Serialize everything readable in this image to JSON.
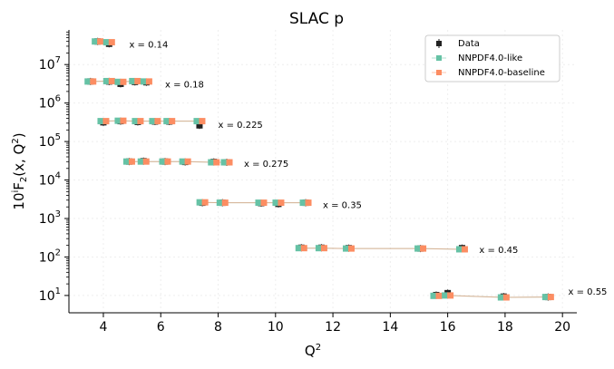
{
  "chart_data": {
    "type": "scatter",
    "title": "SLAC p",
    "xlabel": "Q",
    "xlabel_sup": "2",
    "ylabel_parts": {
      "base": "10",
      "exp": "i",
      "func": "F",
      "sub": "2",
      "args": "(x, Q",
      "args_sup": "2",
      "close": ")"
    },
    "xlim": [
      2.8,
      20.5
    ],
    "ylim_log10": [
      0.55,
      7.9
    ],
    "y_scale": "log",
    "xticks": [
      4,
      6,
      8,
      10,
      12,
      14,
      16,
      18,
      20
    ],
    "xtick_labels": [
      "4",
      "6",
      "8",
      "10",
      "12",
      "14",
      "16",
      "18",
      "20"
    ],
    "ytick_exponents": [
      1,
      2,
      3,
      4,
      5,
      6,
      7
    ],
    "ytick_labels": [
      {
        "base": "10",
        "exp": "1"
      },
      {
        "base": "10",
        "exp": "2"
      },
      {
        "base": "10",
        "exp": "3"
      },
      {
        "base": "10",
        "exp": "4"
      },
      {
        "base": "10",
        "exp": "5"
      },
      {
        "base": "10",
        "exp": "6"
      },
      {
        "base": "10",
        "exp": "7"
      }
    ],
    "grid": true,
    "legend_position": "top-right",
    "series": [
      {
        "name": "Data",
        "color": "#222222",
        "marker": "square"
      },
      {
        "name": "NNPDF4.0-like",
        "color": "#66c2a5",
        "marker": "square"
      },
      {
        "name": "NNPDF4.0-baseline",
        "color": "#fc8d62",
        "marker": "square"
      }
    ],
    "bins": [
      {
        "label": "x = 0.14",
        "label_pos": [
          4.9,
          7.53
        ],
        "x": [
          3.8,
          4.2
        ],
        "data": [
          7.6,
          7.54
        ],
        "like": [
          7.6,
          7.58
        ],
        "base": [
          7.6,
          7.58
        ]
      },
      {
        "label": "x = 0.18",
        "label_pos": [
          6.15,
          6.5
        ],
        "x": [
          3.55,
          4.2,
          4.6,
          5.1,
          5.5
        ],
        "data": [
          6.56,
          6.56,
          6.5,
          6.55,
          6.54
        ],
        "like": [
          6.56,
          6.57,
          6.55,
          6.57,
          6.56
        ],
        "base": [
          6.56,
          6.57,
          6.55,
          6.57,
          6.56
        ]
      },
      {
        "label": "x = 0.225",
        "label_pos": [
          8.0,
          5.45
        ],
        "x": [
          4.0,
          4.6,
          5.2,
          5.8,
          6.3,
          7.35
        ],
        "data": [
          5.5,
          5.53,
          5.51,
          5.52,
          5.52,
          5.42
        ],
        "like": [
          5.53,
          5.54,
          5.53,
          5.53,
          5.53,
          5.53
        ],
        "base": [
          5.53,
          5.54,
          5.53,
          5.53,
          5.53,
          5.53
        ]
      },
      {
        "label": "x = 0.275",
        "label_pos": [
          8.9,
          4.44
        ],
        "x": [
          4.9,
          5.4,
          6.15,
          6.85,
          7.85,
          8.3
        ],
        "data": [
          4.48,
          4.49,
          4.48,
          4.47,
          4.47,
          4.46
        ],
        "like": [
          4.48,
          4.48,
          4.48,
          4.48,
          4.46,
          4.46
        ],
        "base": [
          4.48,
          4.48,
          4.48,
          4.48,
          4.46,
          4.46
        ]
      },
      {
        "label": "x = 0.35",
        "label_pos": [
          11.65,
          3.37
        ],
        "x": [
          7.45,
          8.15,
          9.5,
          10.1,
          11.05
        ],
        "data": [
          3.41,
          3.41,
          3.4,
          3.38,
          3.41
        ],
        "like": [
          3.42,
          3.41,
          3.41,
          3.41,
          3.41
        ],
        "base": [
          3.42,
          3.41,
          3.41,
          3.41,
          3.41
        ]
      },
      {
        "label": "x = 0.45",
        "label_pos": [
          17.1,
          2.2
        ],
        "x": [
          10.9,
          11.6,
          12.55,
          15.05,
          16.5
        ],
        "data": [
          2.24,
          2.24,
          2.23,
          2.22,
          2.23
        ],
        "like": [
          2.23,
          2.23,
          2.22,
          2.22,
          2.2
        ],
        "base": [
          2.23,
          2.23,
          2.22,
          2.22,
          2.2
        ]
      },
      {
        "label": "x = 0.55",
        "label_pos": [
          20.2,
          1.12
        ],
        "x": [
          15.6,
          16.0,
          17.95,
          19.5
        ],
        "data": [
          1.01,
          1.06,
          0.97,
          0.96
        ],
        "like": [
          0.99,
          1.0,
          0.95,
          0.96
        ],
        "base": [
          0.99,
          1.0,
          0.95,
          0.96
        ]
      }
    ]
  }
}
